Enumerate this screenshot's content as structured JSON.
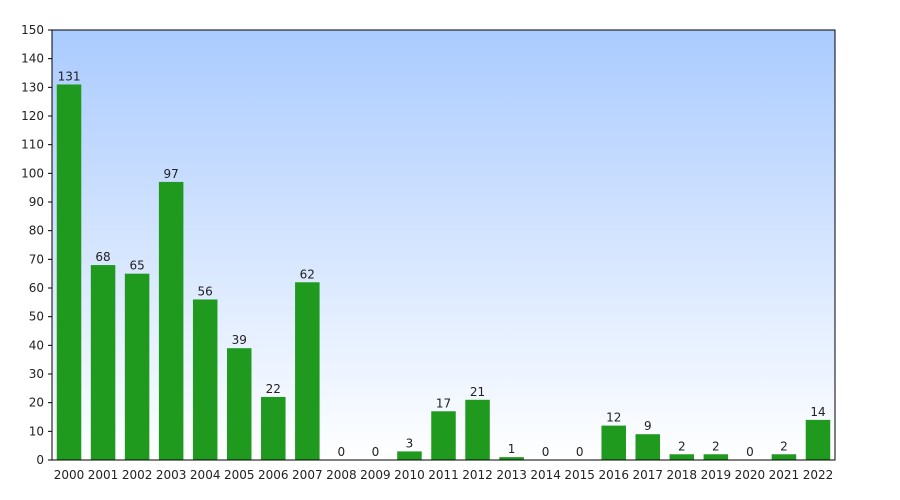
{
  "chart_data": {
    "type": "bar",
    "title": "",
    "xlabel": "",
    "ylabel": "",
    "categories": [
      "2000",
      "2001",
      "2002",
      "2003",
      "2004",
      "2005",
      "2006",
      "2007",
      "2008",
      "2009",
      "2010",
      "2011",
      "2012",
      "2013",
      "2014",
      "2015",
      "2016",
      "2017",
      "2018",
      "2019",
      "2020",
      "2021",
      "2022"
    ],
    "values": [
      131,
      68,
      65,
      97,
      56,
      39,
      22,
      62,
      0,
      0,
      3,
      17,
      21,
      1,
      0,
      0,
      12,
      9,
      2,
      2,
      0,
      2,
      14
    ],
    "ylim": [
      0,
      150
    ],
    "yticks": [
      0,
      10,
      20,
      30,
      40,
      50,
      60,
      70,
      80,
      90,
      100,
      110,
      120,
      130,
      140,
      150
    ],
    "grid": false,
    "legend": "none",
    "colors": {
      "bar": "#1f9a1f",
      "background_top": "#aacbff",
      "background_bottom": "#ffffff",
      "axis": "#000000",
      "text": "#222222"
    }
  }
}
